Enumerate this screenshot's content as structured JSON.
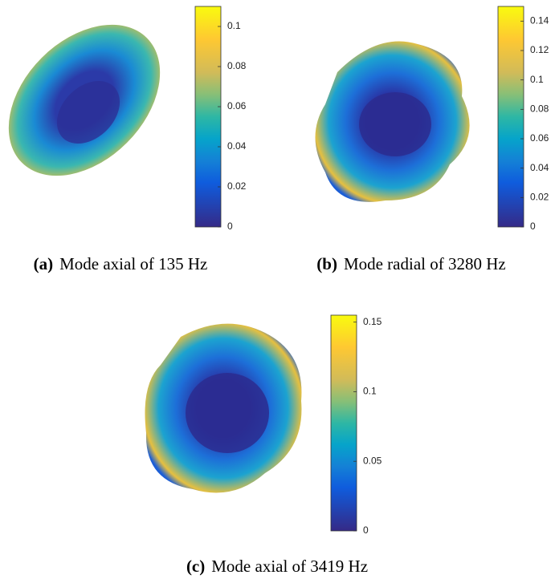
{
  "panels": [
    {
      "label": "(a)",
      "caption": "Mode axial of 135 Hz",
      "colorbar": {
        "lim": [
          0,
          0.11
        ],
        "ticks": [
          0,
          0.02,
          0.04,
          0.06,
          0.08,
          0.1
        ]
      }
    },
    {
      "label": "(b)",
      "caption": "Mode radial of 3280 Hz",
      "colorbar": {
        "lim": [
          0,
          0.15
        ],
        "ticks": [
          0,
          0.02,
          0.04,
          0.06,
          0.08,
          0.1,
          0.12,
          0.14
        ]
      }
    },
    {
      "label": "(c)",
      "caption": "Mode axial of 3419 Hz",
      "colorbar": {
        "lim": [
          0,
          0.155
        ],
        "ticks": [
          0,
          0.05,
          0.1,
          0.15
        ]
      }
    }
  ]
}
